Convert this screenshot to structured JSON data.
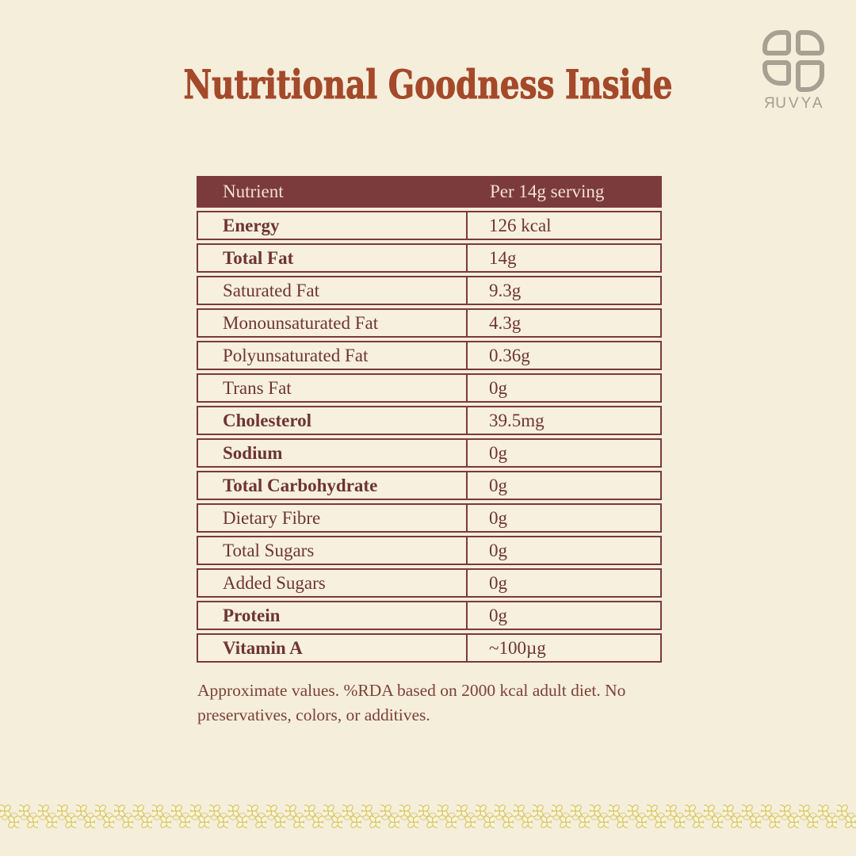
{
  "title": "Nutritional Goodness Inside",
  "logo": {
    "brand": "RUVYA"
  },
  "table": {
    "headers": [
      "Nutrient",
      "Per 14g serving"
    ],
    "rows": [
      {
        "label": "Energy",
        "value": "126 kcal",
        "bold": true
      },
      {
        "label": "Total Fat",
        "value": "14g",
        "bold": true
      },
      {
        "label": "Saturated Fat",
        "value": "9.3g",
        "bold": false
      },
      {
        "label": "Monounsaturated Fat",
        "value": "4.3g",
        "bold": false
      },
      {
        "label": "Polyunsaturated Fat",
        "value": "0.36g",
        "bold": false
      },
      {
        "label": "Trans Fat",
        "value": "0g",
        "bold": false
      },
      {
        "label": "Cholesterol",
        "value": "39.5mg",
        "bold": true
      },
      {
        "label": "Sodium",
        "value": "0g",
        "bold": true
      },
      {
        "label": "Total Carbohydrate",
        "value": "0g",
        "bold": true
      },
      {
        "label": "Dietary Fibre",
        "value": "0g",
        "bold": false
      },
      {
        "label": "Total Sugars",
        "value": "0g",
        "bold": false
      },
      {
        "label": "Added Sugars",
        "value": "0g",
        "bold": false
      },
      {
        "label": "Protein",
        "value": "0g",
        "bold": true
      },
      {
        "label": "Vitamin A",
        "value": "~100µg",
        "bold": true
      }
    ]
  },
  "footnote": "Approximate values. %RDA based on 2000 kcal adult diet. No preservatives, colors, or additives.",
  "colors": {
    "background": "#f5eedb",
    "title_accent": "#a4492a",
    "maroon": "#7b3a3c",
    "row_text": "#6e3433",
    "logo_gray": "#a8a092",
    "lace_gold": "#d2c052"
  }
}
